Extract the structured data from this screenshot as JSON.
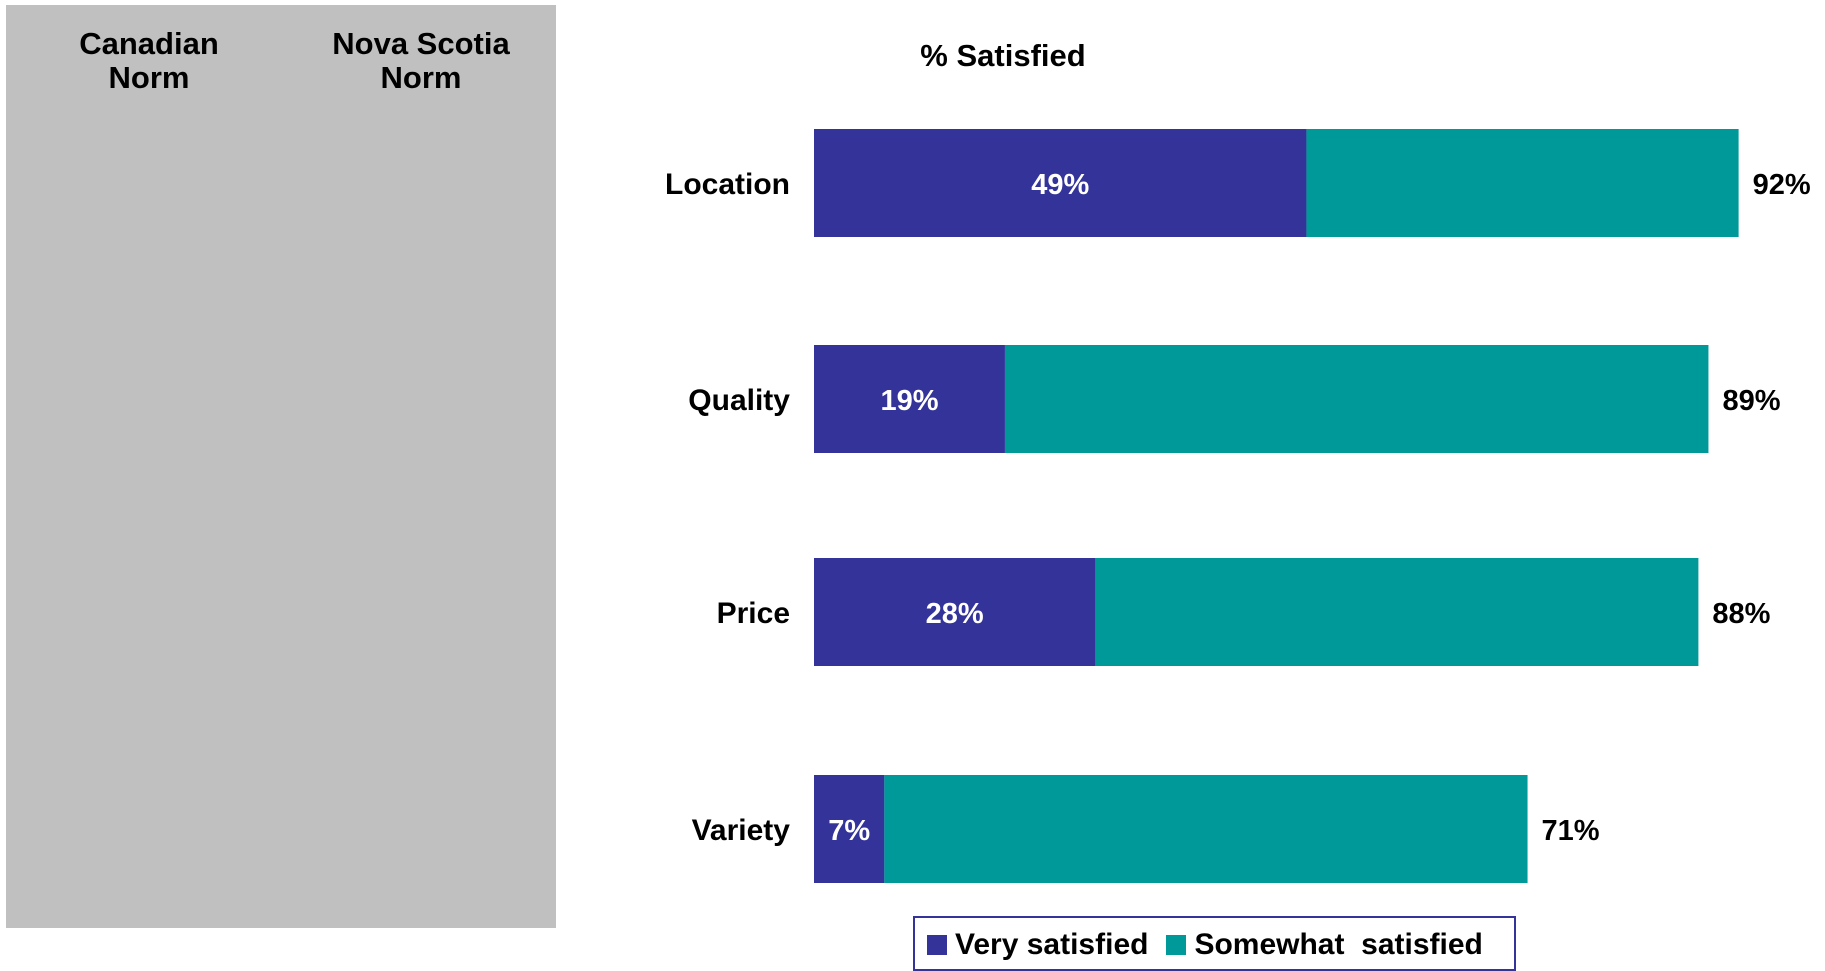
{
  "norms": {
    "canadian": "Canadian\nNorm",
    "nova_scotia": "Nova Scotia\nNorm"
  },
  "chart_data": {
    "type": "bar",
    "orientation": "horizontal",
    "stacked": true,
    "title": "% Satisfied",
    "categories": [
      "Location",
      "Quality",
      "Price",
      "Variety"
    ],
    "series": [
      {
        "name": "Very satisfied",
        "values": [
          49,
          19,
          28,
          7
        ],
        "color": "#333399"
      },
      {
        "name": "Somewhat  satisfied",
        "values": [
          43,
          70,
          60,
          64
        ],
        "color": "#009999"
      }
    ],
    "inner_labels": [
      "49%",
      "19%",
      "28%",
      "7%"
    ],
    "total_labels": [
      "92%",
      "89%",
      "88%",
      "71%"
    ],
    "totals": [
      92,
      89,
      88,
      71
    ],
    "xlim": [
      0,
      100
    ],
    "grid": false,
    "legend": "bottom"
  }
}
